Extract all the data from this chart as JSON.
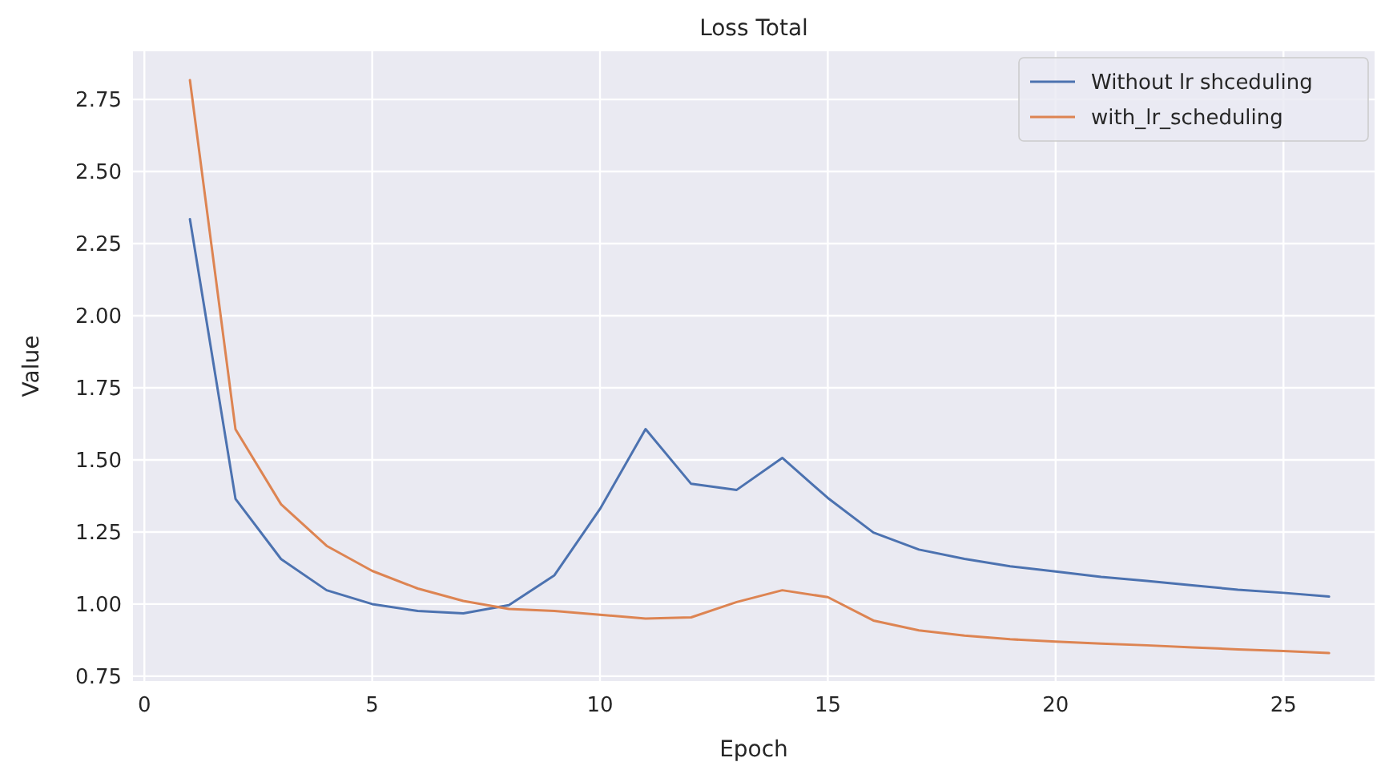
{
  "chart_data": {
    "type": "line",
    "title": "Loss Total",
    "xlabel": "Epoch",
    "ylabel": "Value",
    "x": [
      1,
      2,
      3,
      4,
      5,
      6,
      7,
      8,
      9,
      10,
      11,
      12,
      13,
      14,
      15,
      16,
      17,
      18,
      19,
      20,
      21,
      22,
      23,
      24,
      25,
      26
    ],
    "series": [
      {
        "name": "Without lr shceduling",
        "color": "#4c72b0",
        "values": [
          2.335,
          1.365,
          1.156,
          1.048,
          1.0,
          0.976,
          0.968,
          0.996,
          1.1,
          1.33,
          1.607,
          1.417,
          1.396,
          1.507,
          1.368,
          1.248,
          1.189,
          1.157,
          1.131,
          1.113,
          1.094,
          1.08,
          1.065,
          1.05,
          1.039,
          1.026
        ]
      },
      {
        "name": "with_lr_scheduling",
        "color": "#dd8452",
        "values": [
          2.817,
          1.606,
          1.346,
          1.202,
          1.115,
          1.054,
          1.011,
          0.983,
          0.976,
          0.963,
          0.95,
          0.954,
          1.007,
          1.048,
          1.024,
          0.943,
          0.909,
          0.891,
          0.878,
          0.87,
          0.863,
          0.857,
          0.85,
          0.843,
          0.837,
          0.83
        ]
      }
    ],
    "xlim": [
      -0.25,
      27.0
    ],
    "xticks": [
      0,
      5,
      10,
      15,
      20,
      25
    ],
    "ylim": [
      0.733,
      2.917
    ],
    "yticks": [
      {
        "value": 0.75,
        "label": "0.75"
      },
      {
        "value": 1.0,
        "label": "1.00"
      },
      {
        "value": 1.25,
        "label": "1.25"
      },
      {
        "value": 1.5,
        "label": "1.50"
      },
      {
        "value": 1.75,
        "label": "1.75"
      },
      {
        "value": 2.0,
        "label": "2.00"
      },
      {
        "value": 2.25,
        "label": "2.25"
      },
      {
        "value": 2.5,
        "label": "2.50"
      },
      {
        "value": 2.75,
        "label": "2.75"
      }
    ],
    "grid": true,
    "legend": "top right",
    "marker": "none",
    "line_style": "solid"
  }
}
